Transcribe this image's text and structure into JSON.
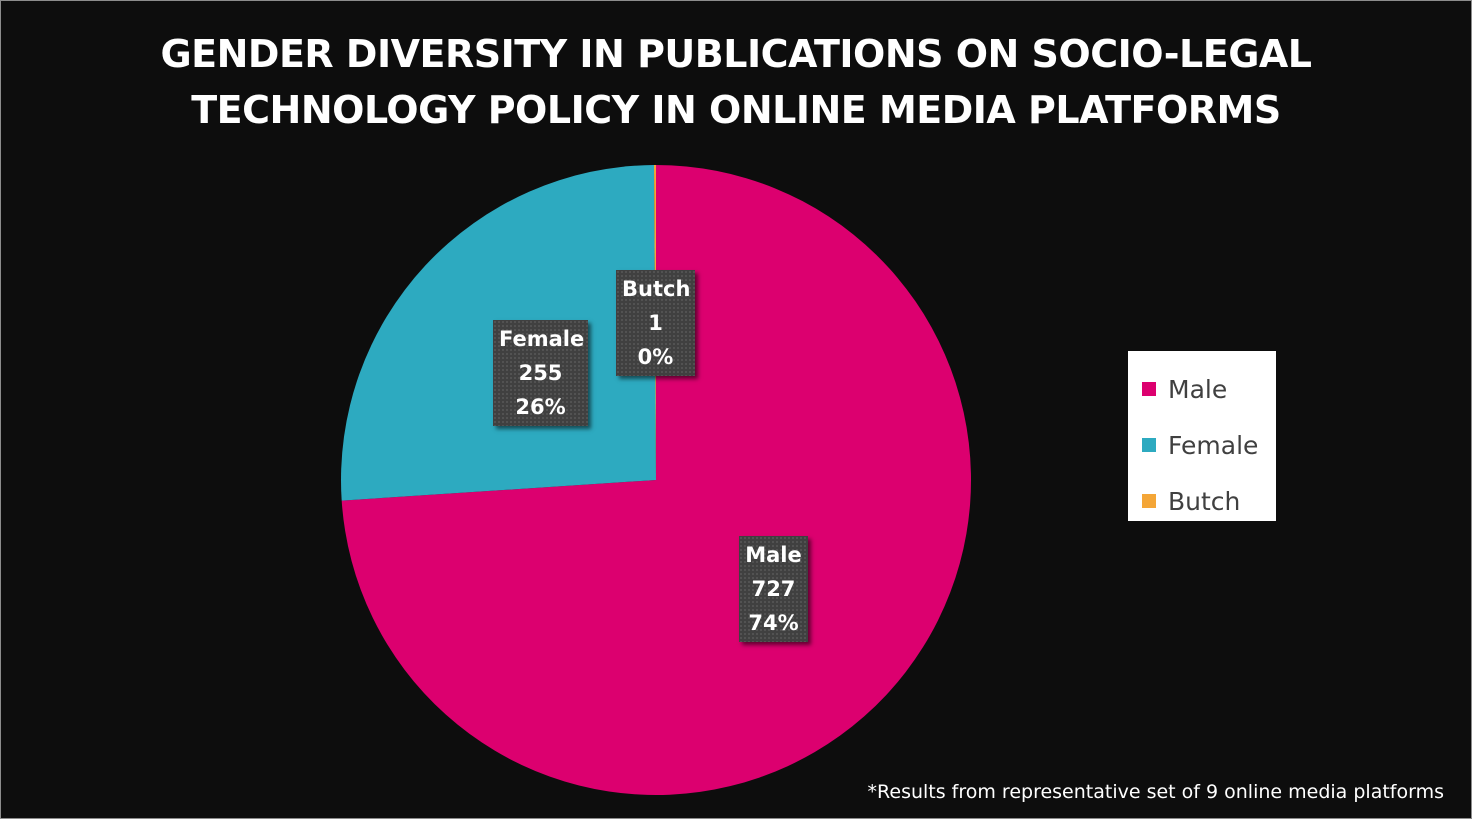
{
  "chart_data": {
    "type": "pie",
    "title": "GENDER DIVERSITY IN PUBLICATIONS ON SOCIO-LEGAL TECHNOLOGY POLICY IN ONLINE MEDIA PLATFORMS",
    "title_lines": [
      "GENDER DIVERSITY IN PUBLICATIONS ON SOCIO-LEGAL",
      "TECHNOLOGY POLICY IN ONLINE MEDIA PLATFORMS"
    ],
    "slices": [
      {
        "name": "Male",
        "value": 727,
        "percent_label": "74%",
        "color": "#DC006F"
      },
      {
        "name": "Female",
        "value": 255,
        "percent_label": "26%",
        "color": "#2DAAC0"
      },
      {
        "name": "Butch",
        "value": 1,
        "percent_label": "0%",
        "color": "#F4A637"
      }
    ],
    "legend_position": "right",
    "footnote": "*Results from representative set of 9 online media platforms"
  },
  "colors": {
    "background": "#0D0D0D",
    "label_box": "#404040",
    "legend_background": "#FFFFFF",
    "legend_text": "#404040"
  }
}
